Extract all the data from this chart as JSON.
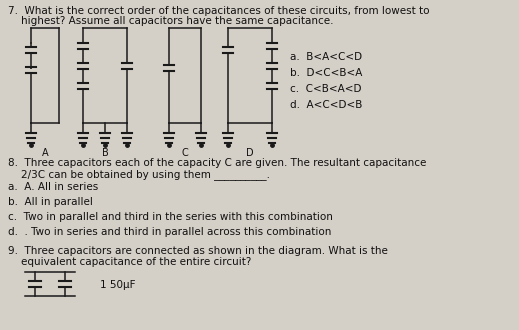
{
  "bg_color": "#d4cfc7",
  "text_color": "#111111",
  "q7_line1": "7.  What is the correct order of the capacitances of these circuits, from lowest to",
  "q7_line2": "    highest? Assume all capacitors have the same capacitance.",
  "q7_options": [
    "a.  B<A<C<D",
    "b.  D<C<B<A",
    "c.  C<B<A<D",
    "d.  A<C<D<B"
  ],
  "q8_line1": "8.  Three capacitors each of the capacity C are given. The resultant capacitance",
  "q8_line2": "    2/3C can be obtained by using them __________.",
  "q8_options": [
    "a.  A. All in series",
    "b.  All in parallel",
    "c.  Two in parallel and third in the series with this combination",
    "d.  . Two in series and third in parallel across this combination"
  ],
  "q9_line1": "9.  Three capacitors are connected as shown in the diagram. What is the",
  "q9_line2": "    equivalent capacitance of the entire circuit?",
  "q9_partial": "1 50µF",
  "circuit_labels": [
    "A",
    "B",
    "C",
    "D"
  ],
  "font_size_body": 7.5,
  "lw": 1.1
}
